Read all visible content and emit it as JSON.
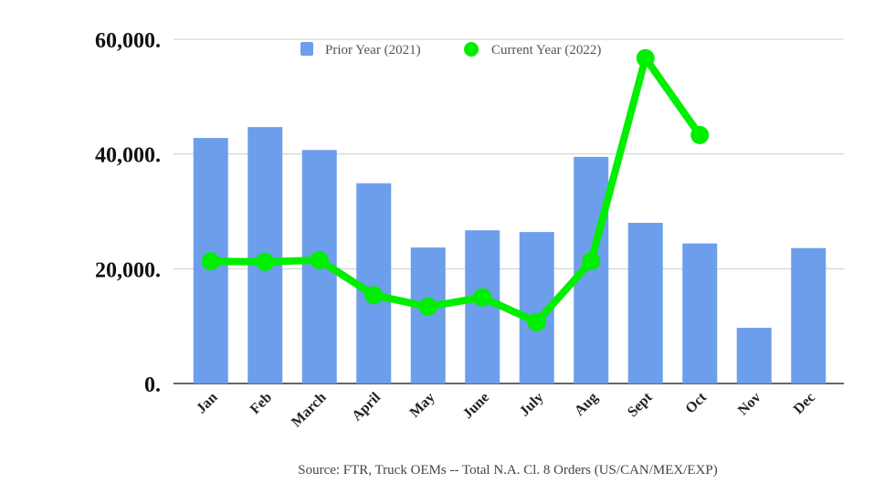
{
  "chart_data": {
    "type": "bar",
    "title": "",
    "xlabel": "",
    "ylabel": "",
    "ylim": [
      0,
      60000
    ],
    "grid": true,
    "legend_position": "top-center",
    "yticks": [
      0,
      20000,
      40000,
      60000
    ],
    "ytick_labels": [
      "0.",
      "20,000.",
      "40,000.",
      "60,000."
    ],
    "categories": [
      "Jan",
      "Feb",
      "March",
      "April",
      "May",
      "June",
      "July",
      "Aug",
      "Sept",
      "Oct",
      "Nov",
      "Dec"
    ],
    "series": [
      {
        "name": "Prior Year (2021)",
        "kind": "bar",
        "color": "#6d9eeb",
        "values": [
          42800,
          44700,
          40700,
          34900,
          23700,
          26700,
          26400,
          39500,
          28000,
          24400,
          9700,
          23600
        ]
      },
      {
        "name": "Current Year (2022)",
        "kind": "line",
        "color": "#00ee00",
        "values": [
          21300,
          21200,
          21500,
          15400,
          13400,
          15000,
          10700,
          21300,
          56700,
          43300,
          null,
          null
        ]
      }
    ],
    "source": "Source: FTR, Truck OEMs -- Total N.A. Cl. 8 Orders (US/CAN/MEX/EXP)"
  }
}
